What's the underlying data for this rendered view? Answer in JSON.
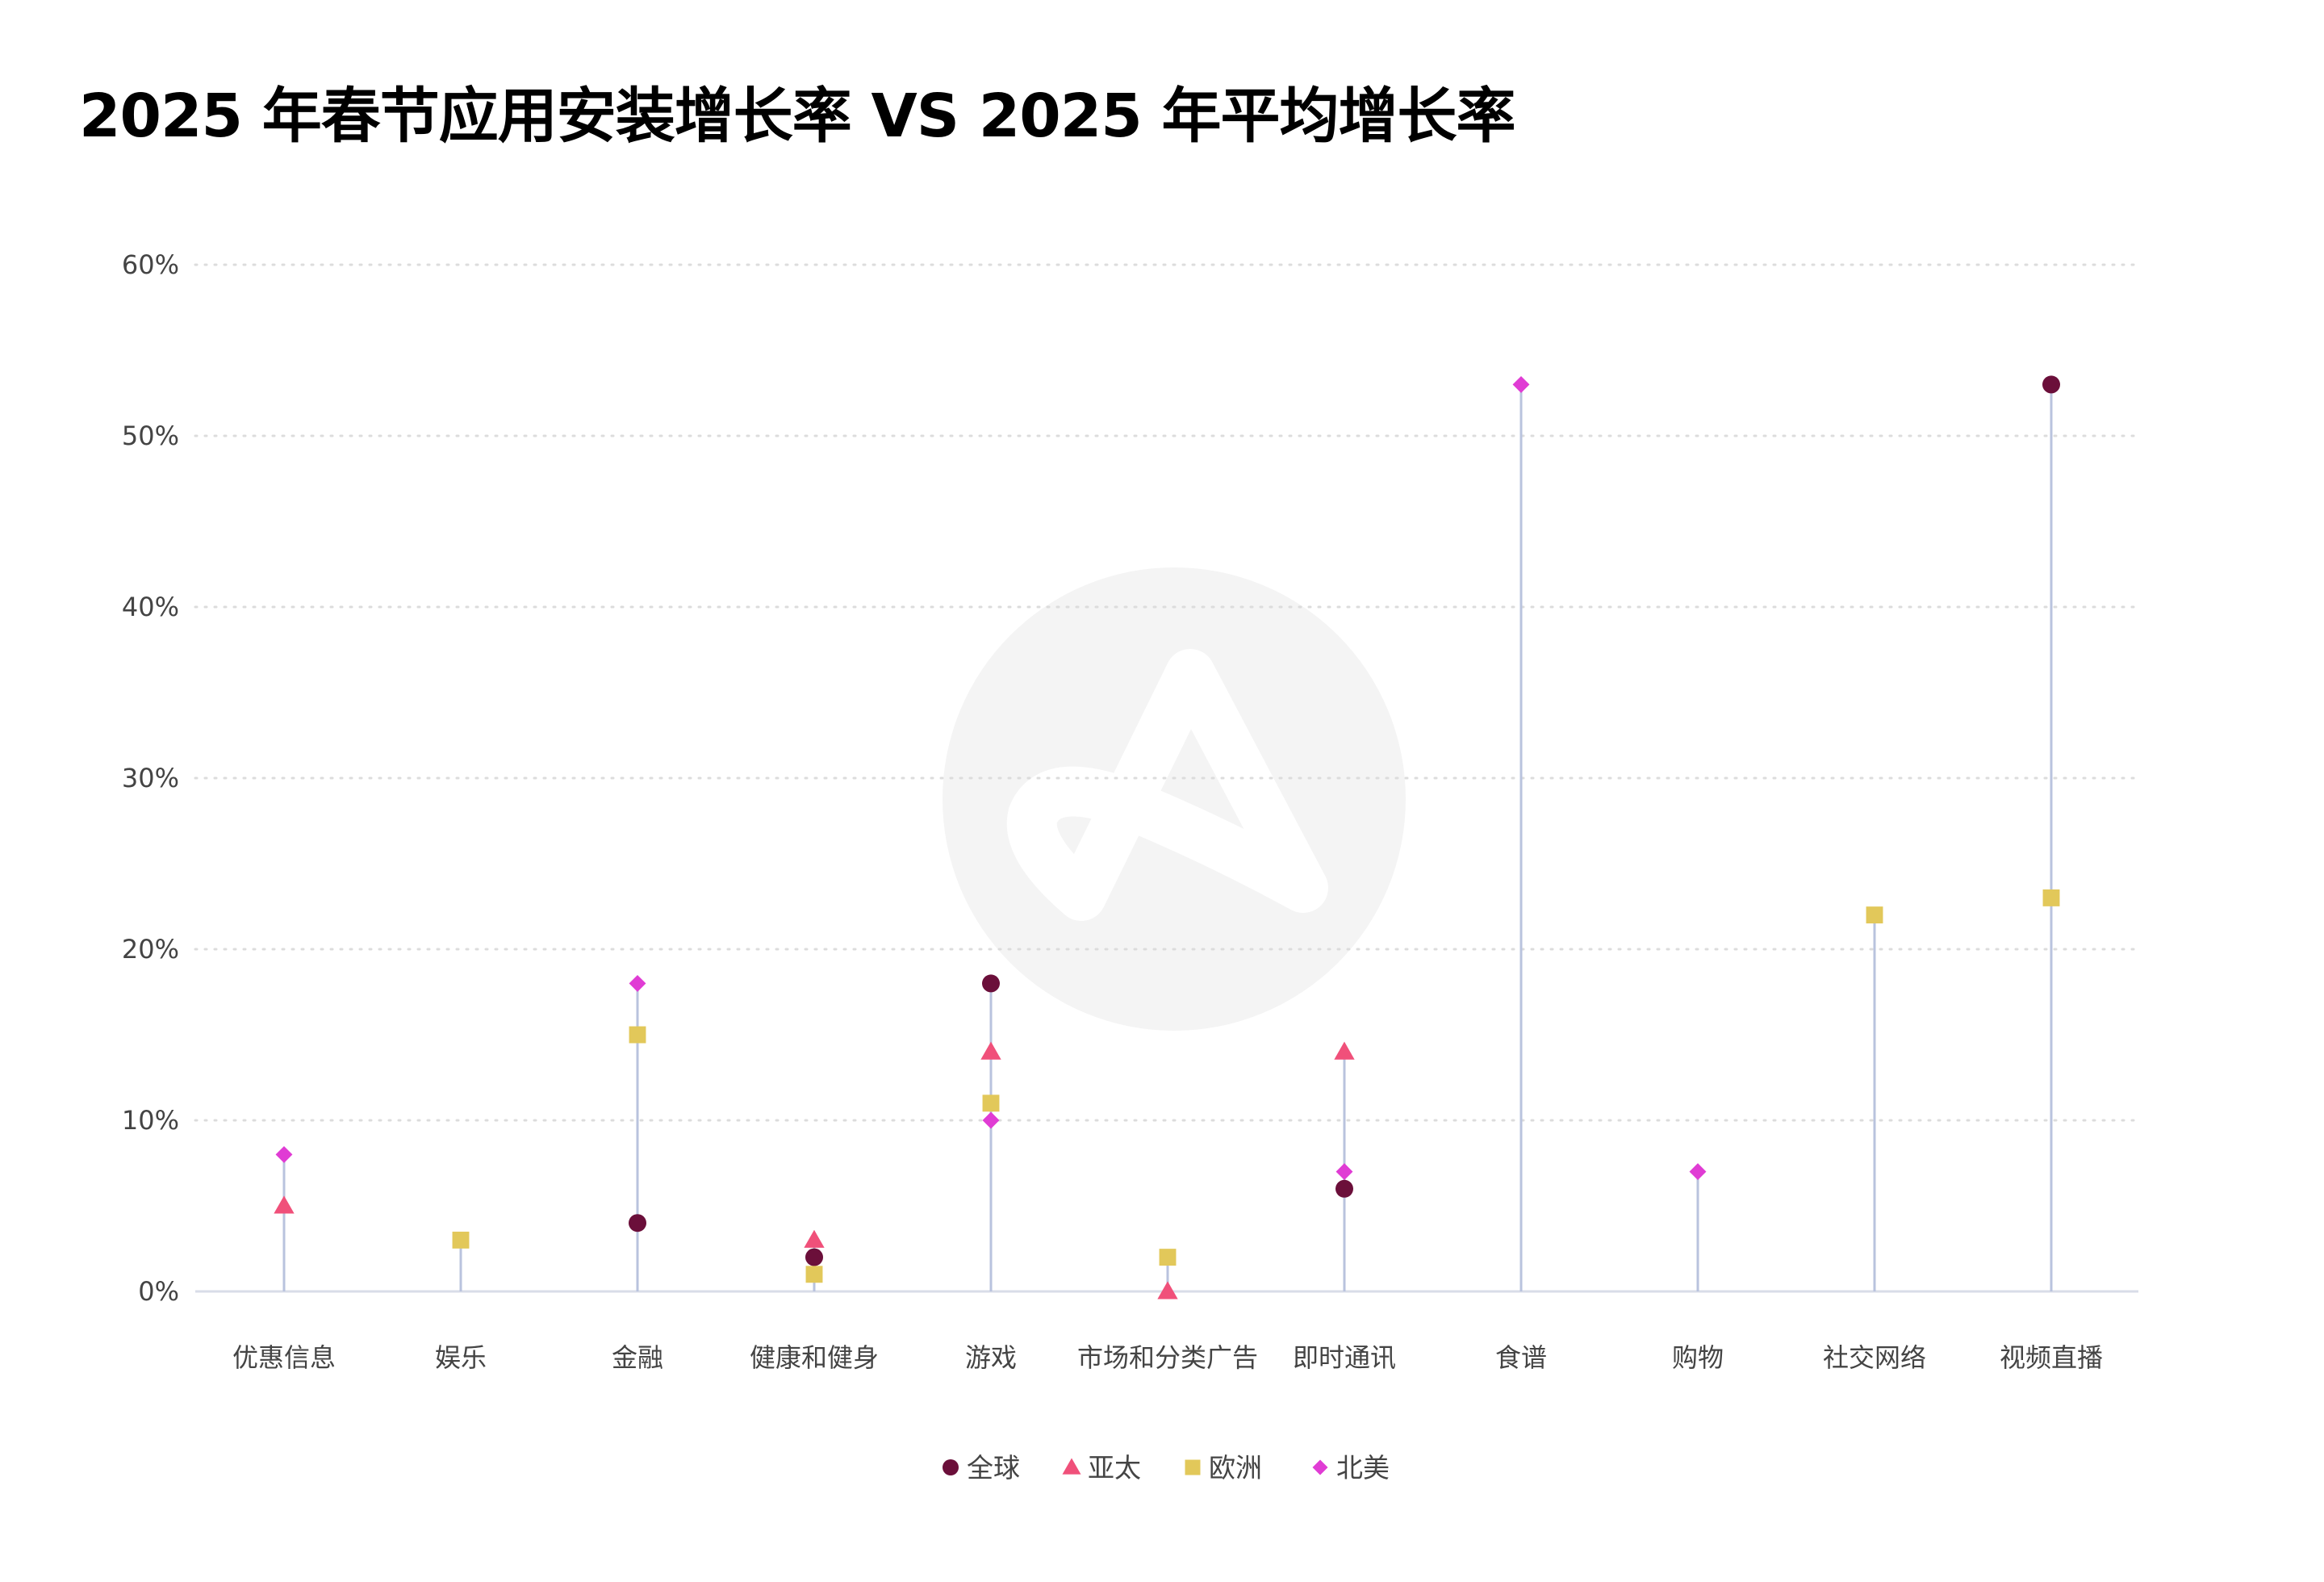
{
  "title": "2025 年春节应用安装增长率 VS 2025 年平均增长率",
  "chart_data": {
    "type": "scatter",
    "subtype": "lollipop-dot-plot",
    "title": "2025 年春节应用安装增长率 VS 2025 年平均增长率",
    "xlabel": "",
    "ylabel": "",
    "categories": [
      "优惠信息",
      "娱乐",
      "金融",
      "健康和健身",
      "游戏",
      "市场和分类广告",
      "即时通讯",
      "食谱",
      "购物",
      "社交网络",
      "视频直播"
    ],
    "y_ticks": [
      0,
      10,
      20,
      30,
      40,
      50,
      60
    ],
    "y_tick_labels": [
      "0%",
      "10%",
      "20%",
      "30%",
      "40%",
      "50%",
      "60%"
    ],
    "ylim": [
      0,
      60
    ],
    "y_unit": "%",
    "grid": "horizontal-dotted",
    "legend_position": "bottom-center",
    "series": [
      {
        "name": "全球",
        "marker": "circle",
        "color": "#6b0f3a",
        "values": [
          null,
          null,
          4,
          2,
          18,
          null,
          6,
          null,
          null,
          null,
          53
        ]
      },
      {
        "name": "亚太",
        "marker": "triangle",
        "color": "#f0507a",
        "values": [
          5,
          null,
          null,
          3,
          14,
          0,
          14,
          null,
          null,
          null,
          null
        ]
      },
      {
        "name": "欧洲",
        "marker": "square",
        "color": "#e2c85a",
        "values": [
          null,
          3,
          15,
          1,
          11,
          2,
          null,
          null,
          null,
          22,
          23
        ]
      },
      {
        "name": "北美",
        "marker": "diamond",
        "color": "#e03cd4",
        "values": [
          8,
          null,
          18,
          null,
          10,
          null,
          7,
          53,
          7,
          null,
          null
        ]
      }
    ],
    "stem_color": "#b9c3de",
    "grid_color": "#dcdcdc",
    "axis_color": "#d9dde8"
  }
}
